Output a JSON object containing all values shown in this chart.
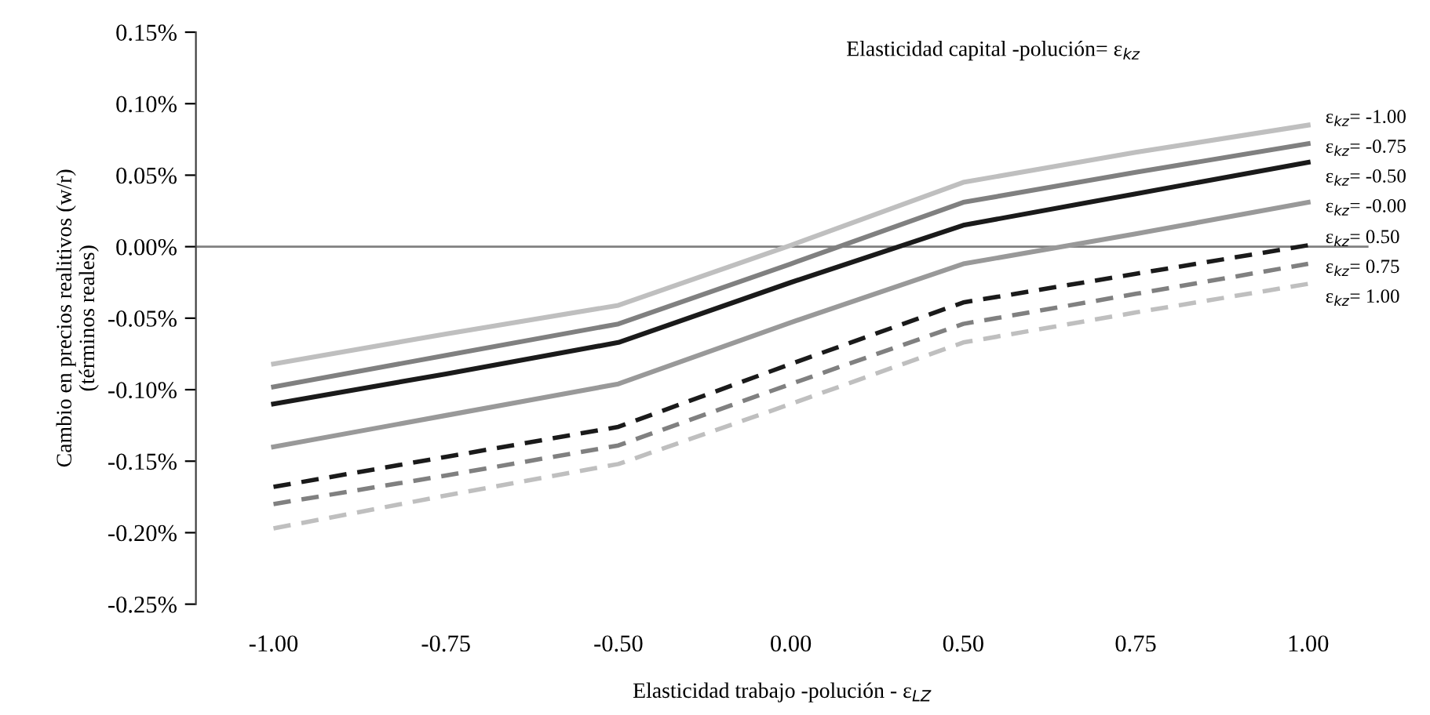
{
  "chart_data": {
    "type": "line",
    "title": "Elasticidad capital -polución= ε$_{kz}$",
    "xlabel": "Elasticidad trabajo -polución - ε$_{LZ}$",
    "ylabel": "Cambio en precios realitivos (w/r)\n(términos reales)",
    "categories": [
      "-1.00",
      "-0.75",
      "-0.50",
      "0.00",
      "0.50",
      "0.75",
      "1.00"
    ],
    "ylim": [
      -0.25,
      0.15
    ],
    "yticks": [
      {
        "value": -0.25,
        "label": "-0.25%"
      },
      {
        "value": -0.2,
        "label": "-0.20%"
      },
      {
        "value": -0.15,
        "label": "-0.15%"
      },
      {
        "value": -0.1,
        "label": "-0.10%"
      },
      {
        "value": -0.05,
        "label": "-0.05%"
      },
      {
        "value": 0,
        "label": "0.00%"
      },
      {
        "value": 0.05,
        "label": "0.05%"
      },
      {
        "value": 0.1,
        "label": "0.10%"
      },
      {
        "value": 0.15,
        "label": "0.15%"
      }
    ],
    "grid": false,
    "legend": false,
    "marker": "none",
    "ref_lines": [
      {
        "axis": "y",
        "value": 0,
        "color": "#808080"
      }
    ],
    "series": [
      {
        "name": "ε$_{kz}$= -1.00",
        "color": "#bfbfbf",
        "line_style": "solid",
        "values": [
          -0.082,
          -0.061,
          -0.041,
          0.001,
          0.045,
          0.066,
          0.085
        ]
      },
      {
        "name": "ε$_{kz}$= -0.75",
        "color": "#808080",
        "line_style": "solid",
        "values": [
          -0.098,
          -0.076,
          -0.054,
          -0.012,
          0.031,
          0.052,
          0.072
        ]
      },
      {
        "name": "ε$_{kz}$= -0.50",
        "color": "#1a1a1a",
        "line_style": "solid",
        "values": [
          -0.11,
          -0.089,
          -0.067,
          -0.025,
          0.015,
          0.037,
          0.059
        ]
      },
      {
        "name": "ε$_{kz}$= -0.00",
        "color": "#999999",
        "line_style": "solid",
        "values": [
          -0.14,
          -0.118,
          -0.096,
          -0.053,
          -0.012,
          0.009,
          0.031
        ]
      },
      {
        "name": "ε$_{kz}$= 0.50",
        "color": "#1a1a1a",
        "line_style": "dashed",
        "values": [
          -0.168,
          -0.147,
          -0.126,
          -0.082,
          -0.039,
          -0.019,
          0.001
        ]
      },
      {
        "name": "ε$_{kz}$= 0.75",
        "color": "#808080",
        "line_style": "dashed",
        "values": [
          -0.18,
          -0.16,
          -0.139,
          -0.096,
          -0.054,
          -0.033,
          -0.012
        ]
      },
      {
        "name": "ε$_{kz}$= 1.00",
        "color": "#bfbfbf",
        "line_style": "dashed",
        "values": [
          -0.197,
          -0.174,
          -0.152,
          -0.11,
          -0.067,
          -0.046,
          -0.026
        ]
      }
    ]
  }
}
